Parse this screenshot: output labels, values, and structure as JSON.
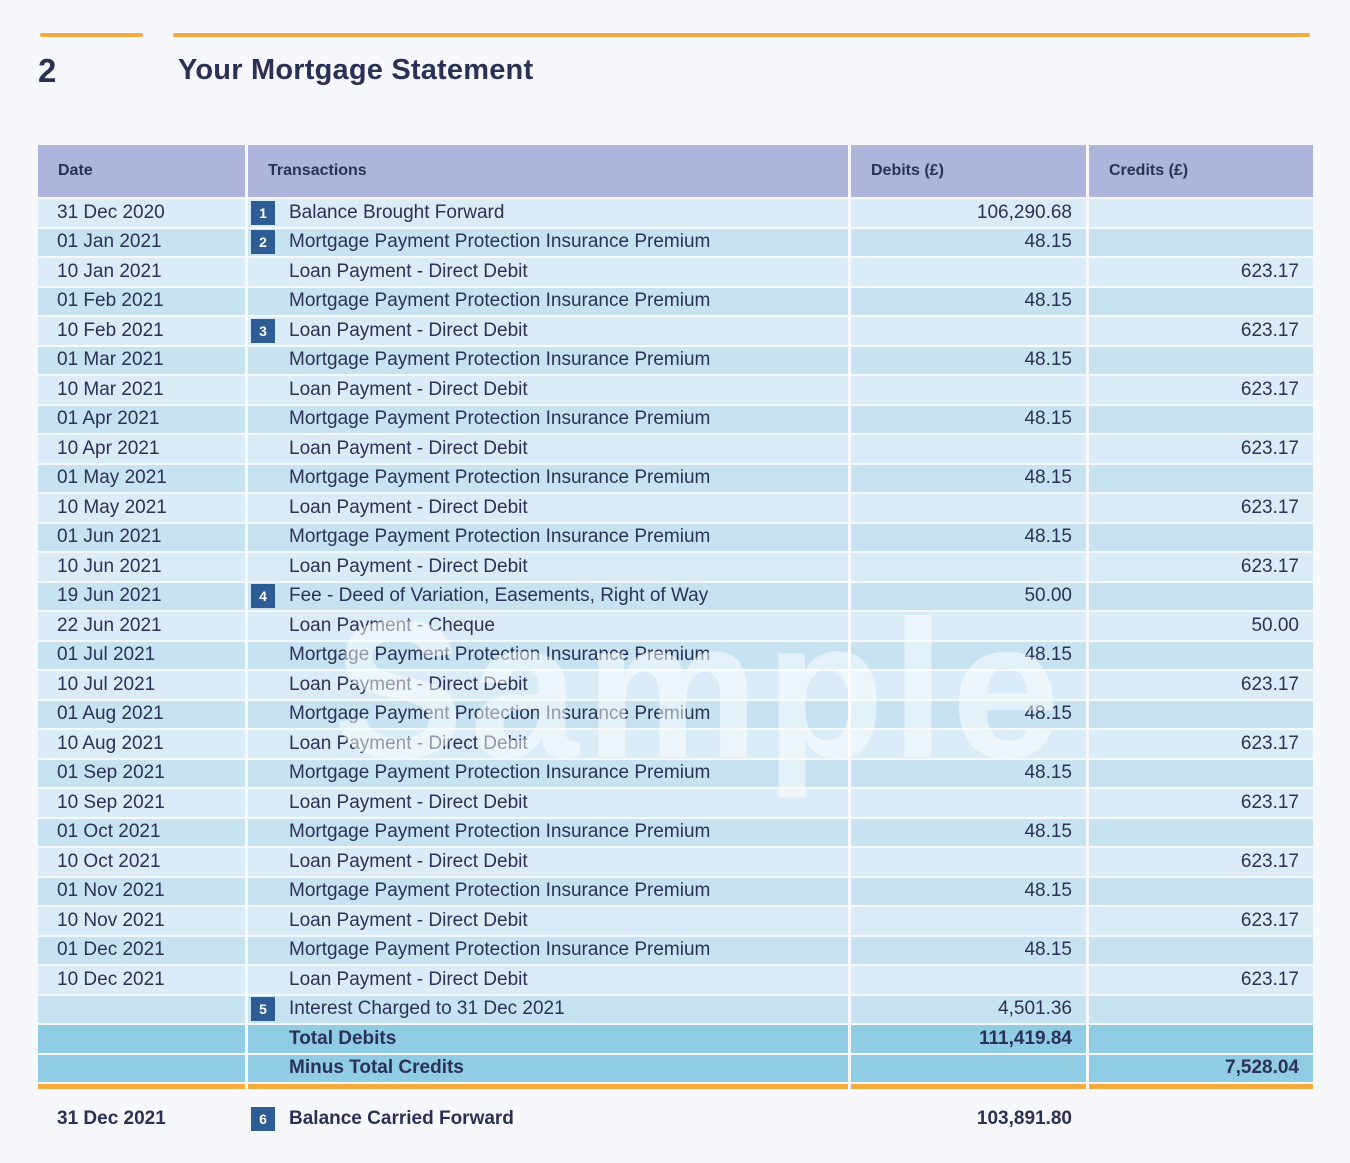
{
  "page": {
    "section_number": "2",
    "title": "Your Mortgage Statement"
  },
  "watermark": "Sample",
  "colors": {
    "accent_orange": "#f4aa3d",
    "header_lavender": "#aeb5db",
    "row_light_blue": "#daecf7",
    "row_mid_blue": "#c7e3f1",
    "row_total_blue": "#90cce3",
    "badge_blue": "#2d5d94",
    "text_navy": "#2b3156"
  },
  "table": {
    "headers": [
      "Date",
      "Transactions",
      "Debits (£)",
      "Credits (£)"
    ],
    "rows": [
      {
        "date": "31 Dec 2020",
        "badge": "1",
        "transaction": "Balance Brought Forward",
        "debit": "106,290.68",
        "credit": ""
      },
      {
        "date": "01 Jan 2021",
        "badge": "2",
        "transaction": "Mortgage Payment Protection Insurance Premium",
        "debit": "48.15",
        "credit": ""
      },
      {
        "date": "10 Jan 2021",
        "badge": "",
        "transaction": "Loan Payment - Direct Debit",
        "debit": "",
        "credit": "623.17"
      },
      {
        "date": "01 Feb 2021",
        "badge": "",
        "transaction": "Mortgage Payment Protection Insurance Premium",
        "debit": "48.15",
        "credit": ""
      },
      {
        "date": "10 Feb 2021",
        "badge": "3",
        "transaction": "Loan Payment - Direct Debit",
        "debit": "",
        "credit": "623.17"
      },
      {
        "date": "01 Mar 2021",
        "badge": "",
        "transaction": "Mortgage Payment Protection Insurance Premium",
        "debit": "48.15",
        "credit": ""
      },
      {
        "date": "10 Mar 2021",
        "badge": "",
        "transaction": "Loan Payment - Direct Debit",
        "debit": "",
        "credit": "623.17"
      },
      {
        "date": "01 Apr 2021",
        "badge": "",
        "transaction": "Mortgage Payment Protection Insurance Premium",
        "debit": "48.15",
        "credit": ""
      },
      {
        "date": "10 Apr 2021",
        "badge": "",
        "transaction": "Loan Payment - Direct Debit",
        "debit": "",
        "credit": "623.17"
      },
      {
        "date": "01 May 2021",
        "badge": "",
        "transaction": "Mortgage Payment Protection Insurance Premium",
        "debit": "48.15",
        "credit": ""
      },
      {
        "date": "10 May 2021",
        "badge": "",
        "transaction": "Loan Payment - Direct Debit",
        "debit": "",
        "credit": "623.17"
      },
      {
        "date": "01 Jun 2021",
        "badge": "",
        "transaction": "Mortgage Payment Protection Insurance Premium",
        "debit": "48.15",
        "credit": ""
      },
      {
        "date": "10 Jun 2021",
        "badge": "",
        "transaction": "Loan Payment - Direct Debit",
        "debit": "",
        "credit": "623.17"
      },
      {
        "date": "19 Jun 2021",
        "badge": "4",
        "transaction": "Fee - Deed of Variation, Easements, Right of Way",
        "debit": "50.00",
        "credit": ""
      },
      {
        "date": "22 Jun 2021",
        "badge": "",
        "transaction": "Loan Payment - Cheque",
        "debit": "",
        "credit": "50.00"
      },
      {
        "date": "01 Jul 2021",
        "badge": "",
        "transaction": "Mortgage Payment Protection Insurance Premium",
        "debit": "48.15",
        "credit": ""
      },
      {
        "date": "10 Jul 2021",
        "badge": "",
        "transaction": "Loan Payment - Direct Debit",
        "debit": "",
        "credit": "623.17"
      },
      {
        "date": "01 Aug 2021",
        "badge": "",
        "transaction": "Mortgage Payment Protection Insurance Premium",
        "debit": "48.15",
        "credit": ""
      },
      {
        "date": "10 Aug 2021",
        "badge": "",
        "transaction": "Loan Payment - Direct Debit",
        "debit": "",
        "credit": "623.17"
      },
      {
        "date": "01 Sep 2021",
        "badge": "",
        "transaction": "Mortgage Payment Protection Insurance Premium",
        "debit": "48.15",
        "credit": ""
      },
      {
        "date": "10 Sep 2021",
        "badge": "",
        "transaction": "Loan Payment - Direct Debit",
        "debit": "",
        "credit": "623.17"
      },
      {
        "date": "01 Oct 2021",
        "badge": "",
        "transaction": "Mortgage Payment Protection Insurance Premium",
        "debit": "48.15",
        "credit": ""
      },
      {
        "date": "10 Oct 2021",
        "badge": "",
        "transaction": "Loan Payment - Direct Debit",
        "debit": "",
        "credit": "623.17"
      },
      {
        "date": "01 Nov 2021",
        "badge": "",
        "transaction": "Mortgage Payment Protection Insurance Premium",
        "debit": "48.15",
        "credit": ""
      },
      {
        "date": "10 Nov 2021",
        "badge": "",
        "transaction": "Loan Payment - Direct Debit",
        "debit": "",
        "credit": "623.17"
      },
      {
        "date": "01 Dec 2021",
        "badge": "",
        "transaction": "Mortgage Payment Protection Insurance Premium",
        "debit": "48.15",
        "credit": ""
      },
      {
        "date": "10 Dec 2021",
        "badge": "",
        "transaction": "Loan Payment - Direct Debit",
        "debit": "",
        "credit": "623.17"
      },
      {
        "date": "",
        "badge": "5",
        "transaction": "Interest Charged to 31 Dec 2021",
        "debit": "4,501.36",
        "credit": ""
      }
    ],
    "totals": [
      {
        "label": "Total Debits",
        "debit": "111,419.84",
        "credit": ""
      },
      {
        "label": "Minus Total Credits",
        "debit": "",
        "credit": "7,528.04"
      }
    ],
    "balance": {
      "date": "31 Dec 2021",
      "badge": "6",
      "label": "Balance Carried Forward",
      "debit": "103,891.80"
    }
  }
}
